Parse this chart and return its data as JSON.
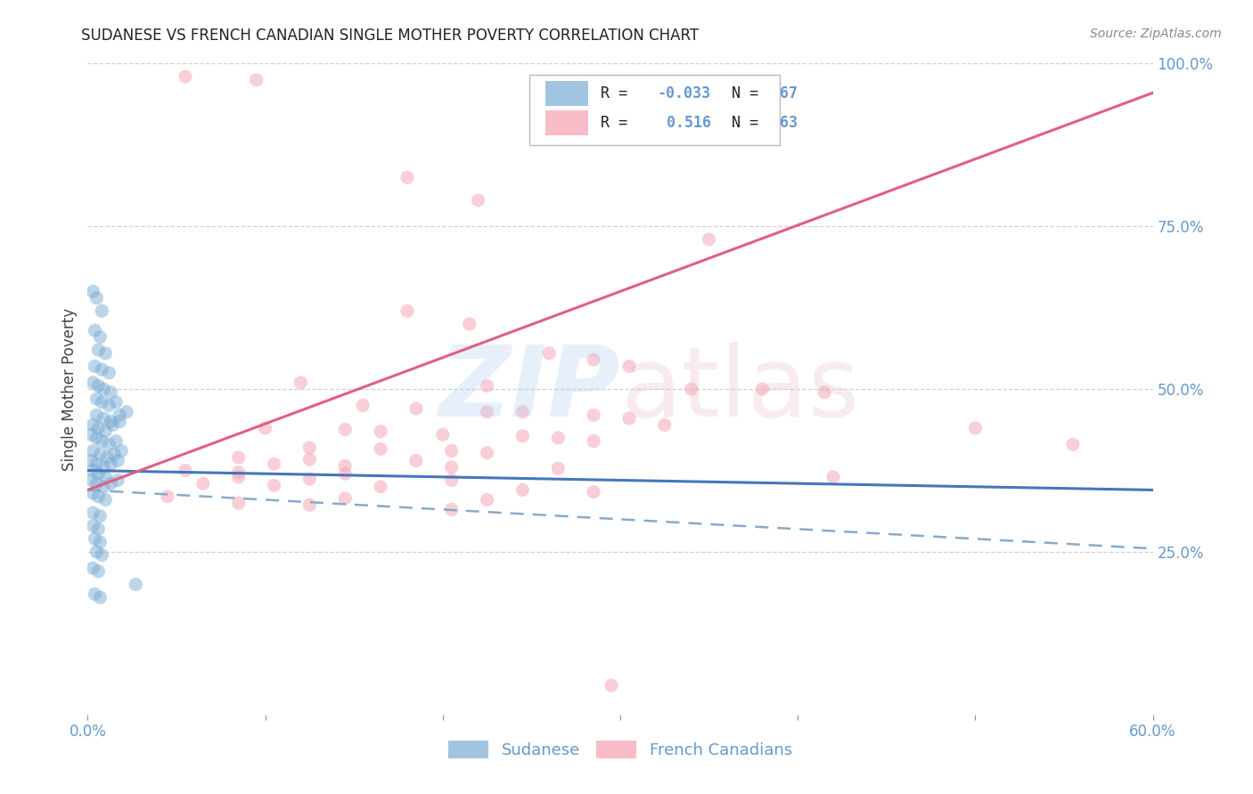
{
  "title": "SUDANESE VS FRENCH CANADIAN SINGLE MOTHER POVERTY CORRELATION CHART",
  "source": "Source: ZipAtlas.com",
  "ylabel": "Single Mother Poverty",
  "xlim": [
    0.0,
    0.6
  ],
  "ylim": [
    0.0,
    1.0
  ],
  "xticks": [
    0.0,
    0.1,
    0.2,
    0.3,
    0.4,
    0.5,
    0.6
  ],
  "xticklabels": [
    "0.0%",
    "",
    "",
    "",
    "",
    "",
    "60.0%"
  ],
  "yticks_right": [
    0.0,
    0.25,
    0.5,
    0.75,
    1.0
  ],
  "yticklabels_right": [
    "",
    "25.0%",
    "50.0%",
    "75.0%",
    "100.0%"
  ],
  "sudanese_color": "#7aadd4",
  "french_color": "#f5a0b0",
  "background_color": "#ffffff",
  "grid_color": "#cccccc",
  "axis_color": "#6699cc",
  "sudanese_line_color": "#4477bb",
  "sudanese_dash_color": "#88aacc",
  "french_line_color": "#e06080",
  "sudanese_line": [
    0.0,
    0.375,
    0.6,
    0.345
  ],
  "sudanese_dash": [
    0.0,
    0.345,
    0.6,
    0.255
  ],
  "french_line": [
    0.0,
    0.345,
    0.6,
    0.955
  ],
  "sudanese_points": [
    [
      0.003,
      0.65
    ],
    [
      0.005,
      0.64
    ],
    [
      0.008,
      0.62
    ],
    [
      0.004,
      0.59
    ],
    [
      0.007,
      0.58
    ],
    [
      0.006,
      0.56
    ],
    [
      0.01,
      0.555
    ],
    [
      0.004,
      0.535
    ],
    [
      0.008,
      0.53
    ],
    [
      0.012,
      0.525
    ],
    [
      0.003,
      0.51
    ],
    [
      0.006,
      0.505
    ],
    [
      0.009,
      0.5
    ],
    [
      0.013,
      0.495
    ],
    [
      0.005,
      0.485
    ],
    [
      0.008,
      0.48
    ],
    [
      0.012,
      0.475
    ],
    [
      0.016,
      0.48
    ],
    [
      0.005,
      0.46
    ],
    [
      0.009,
      0.455
    ],
    [
      0.013,
      0.45
    ],
    [
      0.018,
      0.46
    ],
    [
      0.022,
      0.465
    ],
    [
      0.003,
      0.445
    ],
    [
      0.006,
      0.44
    ],
    [
      0.01,
      0.435
    ],
    [
      0.014,
      0.445
    ],
    [
      0.018,
      0.45
    ],
    [
      0.002,
      0.43
    ],
    [
      0.005,
      0.425
    ],
    [
      0.008,
      0.42
    ],
    [
      0.012,
      0.415
    ],
    [
      0.016,
      0.42
    ],
    [
      0.003,
      0.405
    ],
    [
      0.007,
      0.4
    ],
    [
      0.011,
      0.395
    ],
    [
      0.015,
      0.4
    ],
    [
      0.019,
      0.405
    ],
    [
      0.002,
      0.39
    ],
    [
      0.005,
      0.385
    ],
    [
      0.009,
      0.38
    ],
    [
      0.013,
      0.385
    ],
    [
      0.017,
      0.39
    ],
    [
      0.003,
      0.375
    ],
    [
      0.006,
      0.37
    ],
    [
      0.01,
      0.365
    ],
    [
      0.002,
      0.36
    ],
    [
      0.005,
      0.355
    ],
    [
      0.009,
      0.35
    ],
    [
      0.013,
      0.355
    ],
    [
      0.017,
      0.36
    ],
    [
      0.003,
      0.34
    ],
    [
      0.006,
      0.335
    ],
    [
      0.01,
      0.33
    ],
    [
      0.003,
      0.31
    ],
    [
      0.007,
      0.305
    ],
    [
      0.003,
      0.29
    ],
    [
      0.006,
      0.285
    ],
    [
      0.004,
      0.27
    ],
    [
      0.007,
      0.265
    ],
    [
      0.005,
      0.25
    ],
    [
      0.008,
      0.245
    ],
    [
      0.003,
      0.225
    ],
    [
      0.006,
      0.22
    ],
    [
      0.027,
      0.2
    ],
    [
      0.004,
      0.185
    ],
    [
      0.007,
      0.18
    ]
  ],
  "french_points": [
    [
      0.055,
      0.98
    ],
    [
      0.095,
      0.975
    ],
    [
      0.18,
      0.825
    ],
    [
      0.22,
      0.79
    ],
    [
      0.35,
      0.73
    ],
    [
      0.18,
      0.62
    ],
    [
      0.215,
      0.6
    ],
    [
      0.26,
      0.555
    ],
    [
      0.285,
      0.545
    ],
    [
      0.305,
      0.535
    ],
    [
      0.12,
      0.51
    ],
    [
      0.225,
      0.505
    ],
    [
      0.34,
      0.5
    ],
    [
      0.38,
      0.5
    ],
    [
      0.415,
      0.495
    ],
    [
      0.155,
      0.475
    ],
    [
      0.185,
      0.47
    ],
    [
      0.225,
      0.465
    ],
    [
      0.245,
      0.465
    ],
    [
      0.285,
      0.46
    ],
    [
      0.305,
      0.455
    ],
    [
      0.325,
      0.445
    ],
    [
      0.1,
      0.44
    ],
    [
      0.145,
      0.438
    ],
    [
      0.165,
      0.435
    ],
    [
      0.2,
      0.43
    ],
    [
      0.245,
      0.428
    ],
    [
      0.265,
      0.425
    ],
    [
      0.285,
      0.42
    ],
    [
      0.125,
      0.41
    ],
    [
      0.165,
      0.408
    ],
    [
      0.205,
      0.405
    ],
    [
      0.225,
      0.402
    ],
    [
      0.085,
      0.395
    ],
    [
      0.125,
      0.392
    ],
    [
      0.185,
      0.39
    ],
    [
      0.105,
      0.385
    ],
    [
      0.145,
      0.382
    ],
    [
      0.205,
      0.38
    ],
    [
      0.265,
      0.378
    ],
    [
      0.055,
      0.375
    ],
    [
      0.085,
      0.372
    ],
    [
      0.145,
      0.37
    ],
    [
      0.085,
      0.365
    ],
    [
      0.125,
      0.362
    ],
    [
      0.205,
      0.36
    ],
    [
      0.065,
      0.355
    ],
    [
      0.105,
      0.352
    ],
    [
      0.165,
      0.35
    ],
    [
      0.245,
      0.345
    ],
    [
      0.285,
      0.342
    ],
    [
      0.045,
      0.335
    ],
    [
      0.145,
      0.332
    ],
    [
      0.225,
      0.33
    ],
    [
      0.085,
      0.325
    ],
    [
      0.125,
      0.322
    ],
    [
      0.205,
      0.315
    ],
    [
      0.295,
      0.045
    ],
    [
      0.5,
      0.44
    ],
    [
      0.555,
      0.415
    ],
    [
      0.42,
      0.365
    ]
  ]
}
